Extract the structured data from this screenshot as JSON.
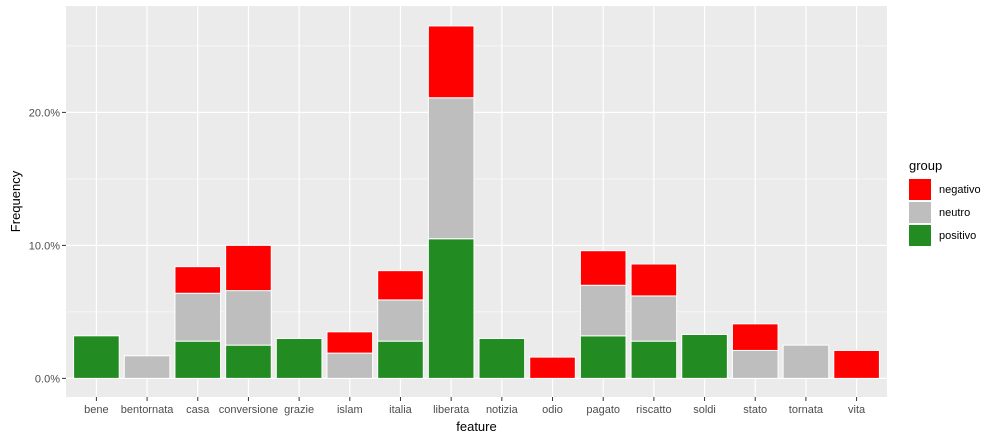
{
  "chart_data": {
    "type": "bar",
    "stacked": true,
    "xlabel": "feature",
    "ylabel": "Frequency",
    "categories": [
      "bene",
      "bentornata",
      "casa",
      "conversione",
      "grazie",
      "islam",
      "italia",
      "liberata",
      "notizia",
      "odio",
      "pagato",
      "riscatto",
      "soldi",
      "stato",
      "tornata",
      "vita"
    ],
    "series": [
      {
        "name": "positivo",
        "color": "#228B22",
        "values": [
          3.2,
          0,
          2.8,
          2.5,
          3.0,
          0,
          2.8,
          10.5,
          3.0,
          0,
          3.2,
          2.8,
          3.3,
          0,
          0,
          0
        ]
      },
      {
        "name": "neutro",
        "color": "#BEBEBE",
        "values": [
          0,
          1.7,
          3.6,
          4.1,
          0,
          1.9,
          3.1,
          10.6,
          0,
          0,
          3.8,
          3.4,
          0,
          2.1,
          2.5,
          0
        ]
      },
      {
        "name": "negativo",
        "color": "#FF0000",
        "values": [
          0,
          0,
          2.0,
          3.4,
          0,
          1.6,
          2.2,
          5.4,
          0,
          1.6,
          2.6,
          2.4,
          0,
          2.0,
          0,
          2.1
        ]
      }
    ],
    "ylim": [
      -1.4,
      28.0
    ],
    "yticks": [
      0,
      10,
      20
    ],
    "ytick_labels": [
      "0.0%",
      "10.0%",
      "20.0%"
    ],
    "legend": {
      "title": "group",
      "position": "right",
      "entries": [
        {
          "label": "negativo",
          "color": "#FF0000"
        },
        {
          "label": "neutro",
          "color": "#BEBEBE"
        },
        {
          "label": "positivo",
          "color": "#228B22"
        }
      ]
    },
    "grid": true,
    "panel_background": "#EBEBEB"
  }
}
